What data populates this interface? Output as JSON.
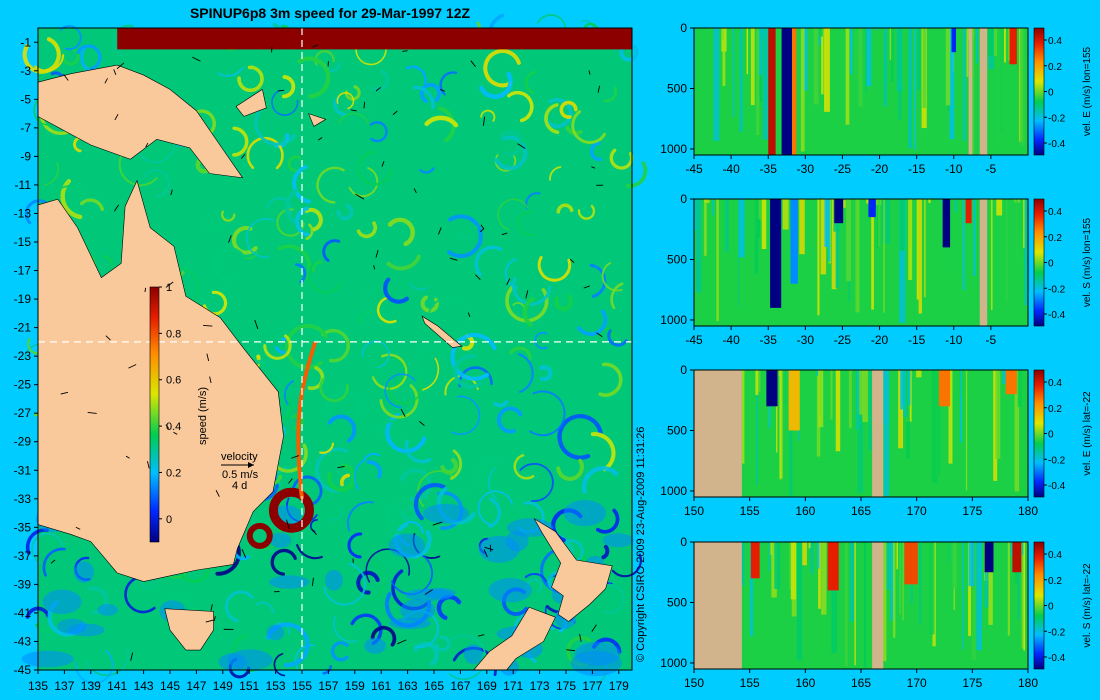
{
  "title": "SPINUP6p8 3m speed for 29-Mar-1997 12Z",
  "copyright": "© Copyright CSIRO 2009   23-Aug-2009 11:31:26",
  "colors": {
    "background": "#00ccff",
    "land": "#f9c99b",
    "section_land": "#d2b48c"
  },
  "chart_data": [
    {
      "type": "heatmap",
      "name": "map",
      "title": "SPINUP6p8 3m speed for 29-Mar-1997 12Z",
      "x_ticks": [
        "135",
        "137",
        "139",
        "141",
        "143",
        "145",
        "147",
        "149",
        "151",
        "153",
        "155",
        "157",
        "159",
        "161",
        "163",
        "165",
        "167",
        "169",
        "171",
        "173",
        "175",
        "177",
        "179"
      ],
      "y_ticks": [
        "-1",
        "-3",
        "-5",
        "-7",
        "-9",
        "-11",
        "-13",
        "-15",
        "-17",
        "-19",
        "-21",
        "-23",
        "-25",
        "-27",
        "-29",
        "-31",
        "-33",
        "-35",
        "-37",
        "-39",
        "-41",
        "-43",
        "-45"
      ],
      "xlim": [
        135,
        180
      ],
      "ylim": [
        -45,
        0
      ],
      "crosshair": {
        "lon": 155,
        "lat": -22
      },
      "colorbar": {
        "label": "speed (m/s)",
        "ticks": [
          "0",
          "0.2",
          "0.4",
          "0.6",
          "0.8",
          "1"
        ],
        "tick_values": [
          0,
          0.2,
          0.4,
          0.6,
          0.8,
          1
        ],
        "range": [
          -0.1,
          1
        ]
      },
      "velocity_legend": {
        "label": "velocity",
        "scale": "0.5 m/s",
        "period": "4 d"
      },
      "features": [
        {
          "kind": "eddy",
          "lon": 151.8,
          "lat": -35.6,
          "speed": 1.0
        },
        {
          "kind": "eddy",
          "lon": 154.2,
          "lat": -33.8,
          "speed": 1.0
        },
        {
          "kind": "current",
          "name": "boundary jet",
          "lon_range": [
            154,
            156
          ],
          "lat_range": [
            -33,
            -22
          ],
          "speed": 0.8
        },
        {
          "kind": "current",
          "lon_range": [
            141,
            180
          ],
          "lat_range": [
            -1.5,
            0
          ],
          "speed": 1.0
        }
      ]
    },
    {
      "type": "heatmap",
      "name": "section-1",
      "ylabel": "vel. E (m/s) lon=155",
      "x_ticks": [
        "-45",
        "-40",
        "-35",
        "-30",
        "-25",
        "-20",
        "-15",
        "-10",
        "-5"
      ],
      "xlim": [
        -45,
        0
      ],
      "y_ticks": [
        "0",
        "500",
        "1000"
      ],
      "ylim": [
        1050,
        0
      ],
      "colorbar_ticks": [
        "0.4",
        "0.2",
        "0",
        "-0.2",
        "-0.4"
      ],
      "land_bands": [
        [
          -6.5,
          -5.5
        ],
        [
          -8,
          -7.5
        ]
      ],
      "features": [
        {
          "x": -34.5,
          "width": 1.0,
          "depth": 1050,
          "value": 0.45
        },
        {
          "x": -32.5,
          "width": 1.4,
          "depth": 1050,
          "value": -0.45
        },
        {
          "x": -31.5,
          "width": 0.6,
          "depth": 1050,
          "value": 0.3
        },
        {
          "x": -2,
          "width": 1.0,
          "depth": 300,
          "value": 0.4
        },
        {
          "x": -10,
          "width": 0.6,
          "depth": 200,
          "value": -0.3
        }
      ]
    },
    {
      "type": "heatmap",
      "name": "section-2",
      "ylabel": "vel. S (m/s) lon=155",
      "x_ticks": [
        "-45",
        "-40",
        "-35",
        "-30",
        "-25",
        "-20",
        "-15",
        "-10",
        "-5"
      ],
      "xlim": [
        -45,
        0
      ],
      "y_ticks": [
        "0",
        "500",
        "1000"
      ],
      "ylim": [
        1050,
        0
      ],
      "colorbar_ticks": [
        "0.4",
        "0.2",
        "0",
        "-0.2",
        "-0.4"
      ],
      "land_bands": [
        [
          -6.5,
          -5.5
        ]
      ],
      "features": [
        {
          "x": -34,
          "width": 1.5,
          "depth": 900,
          "value": -0.45
        },
        {
          "x": -31.5,
          "width": 1.0,
          "depth": 700,
          "value": -0.2
        },
        {
          "x": -25.5,
          "width": 1.2,
          "depth": 200,
          "value": -0.4
        },
        {
          "x": -21,
          "width": 1.0,
          "depth": 150,
          "value": -0.3
        },
        {
          "x": -11,
          "width": 1.0,
          "depth": 400,
          "value": -0.45
        },
        {
          "x": -8,
          "width": 0.8,
          "depth": 200,
          "value": 0.4
        }
      ]
    },
    {
      "type": "heatmap",
      "name": "section-3",
      "ylabel": "vel. E (m/s) lat=-22",
      "x_ticks": [
        "150",
        "155",
        "160",
        "165",
        "170",
        "175",
        "180"
      ],
      "xlim": [
        150,
        180
      ],
      "y_ticks": [
        "0",
        "500",
        "1000"
      ],
      "ylim": [
        1050,
        0
      ],
      "colorbar_ticks": [
        "0.4",
        "0.2",
        "0",
        "-0.2",
        "-0.4"
      ],
      "land_bands": [
        [
          150,
          154.3
        ],
        [
          166,
          167
        ]
      ],
      "features": [
        {
          "x": 157,
          "width": 1.0,
          "depth": 300,
          "value": -0.45
        },
        {
          "x": 159,
          "width": 1.0,
          "depth": 500,
          "value": 0.2
        },
        {
          "x": 172.5,
          "width": 1.0,
          "depth": 300,
          "value": 0.3
        },
        {
          "x": 178.5,
          "width": 1.0,
          "depth": 200,
          "value": 0.3
        }
      ]
    },
    {
      "type": "heatmap",
      "name": "section-4",
      "ylabel": "vel. S (m/s) lat=-22",
      "x_ticks": [
        "150",
        "155",
        "160",
        "165",
        "170",
        "175",
        "180"
      ],
      "xlim": [
        150,
        180
      ],
      "y_ticks": [
        "0",
        "500",
        "1000"
      ],
      "ylim": [
        1050,
        0
      ],
      "colorbar_ticks": [
        "0.4",
        "0.2",
        "0",
        "-0.2",
        "-0.4"
      ],
      "land_bands": [
        [
          150,
          154.3
        ],
        [
          166,
          167
        ]
      ],
      "features": [
        {
          "x": 155.5,
          "width": 0.8,
          "depth": 300,
          "value": 0.4
        },
        {
          "x": 162.5,
          "width": 1.0,
          "depth": 400,
          "value": 0.4
        },
        {
          "x": 169.5,
          "width": 1.2,
          "depth": 350,
          "value": 0.35
        },
        {
          "x": 176.5,
          "width": 0.8,
          "depth": 250,
          "value": -0.45
        },
        {
          "x": 179,
          "width": 0.8,
          "depth": 250,
          "value": 0.45
        }
      ]
    }
  ]
}
